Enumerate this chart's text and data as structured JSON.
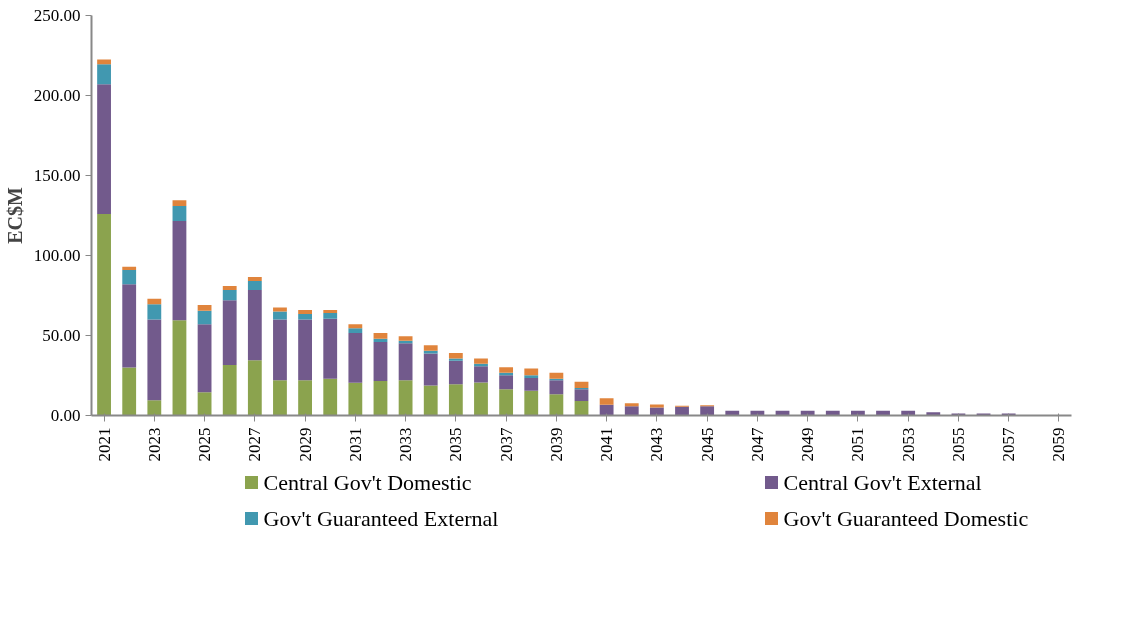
{
  "chart_data": {
    "type": "bar",
    "stacked": true,
    "ylabel": "EC$M",
    "categories": [
      "2021",
      null,
      "2023",
      null,
      "2025",
      null,
      "2027",
      null,
      "2029",
      null,
      "2031",
      null,
      "2033",
      null,
      "2035",
      null,
      "2037",
      null,
      "2039",
      null,
      "2041",
      null,
      "2043",
      null,
      "2045",
      null,
      "2047",
      null,
      "2049",
      null,
      "2051",
      null,
      "2053",
      null,
      "2055",
      null,
      "2057",
      null,
      "2059"
    ],
    "series": [
      {
        "name": "Central Gov't Domestic",
        "color": "#8ba34e",
        "values": [
          126,
          30,
          9.5,
          59.5,
          14.5,
          31.5,
          34.5,
          22,
          22,
          23,
          20.5,
          21.5,
          22,
          18.7,
          19.6,
          20.6,
          16.4,
          15.5,
          13.3,
          9.1,
          0,
          0,
          0,
          0,
          0,
          0,
          0,
          0,
          0,
          0,
          0,
          0,
          0,
          0,
          0,
          0,
          0,
          0,
          0
        ]
      },
      {
        "name": "Central Gov't External",
        "color": "#725a8c",
        "values": [
          81,
          52,
          50.5,
          62,
          42.5,
          40.5,
          44,
          38,
          38,
          37.5,
          31,
          24.5,
          23.2,
          20.1,
          14.6,
          10.2,
          8.8,
          8,
          8.7,
          7.3,
          6.7,
          5.8,
          5,
          5.4,
          5.8,
          3,
          3,
          3,
          3,
          3,
          3,
          3,
          3,
          2.1,
          1.3,
          1.3,
          1.3,
          0,
          0
        ]
      },
      {
        "name": "Gov't Guaranteed External",
        "color": "#4198b0",
        "values": [
          12.5,
          9,
          9.5,
          9.5,
          8.5,
          6.5,
          5.5,
          5,
          3.5,
          3.5,
          3,
          2,
          1.5,
          1.6,
          1.5,
          1.5,
          1.5,
          1.7,
          1,
          0.8,
          0,
          0,
          0,
          0,
          0,
          0,
          0,
          0,
          0,
          0,
          0,
          0,
          0,
          0,
          0,
          0,
          0,
          0,
          0
        ]
      },
      {
        "name": "Gov't Guaranteed Domestic",
        "color": "#e0843c",
        "values": [
          3,
          2,
          3.5,
          3.5,
          3.5,
          2.5,
          2.5,
          2.5,
          2.5,
          2,
          2.5,
          3.5,
          2.8,
          3.5,
          3.3,
          3.4,
          3.4,
          4.1,
          3.7,
          3.9,
          4.1,
          1.9,
          1.9,
          0.7,
          0.6,
          0,
          0,
          0,
          0,
          0,
          0,
          0,
          0,
          0,
          0,
          0,
          0,
          0,
          0
        ]
      }
    ],
    "ylim": [
      0,
      250
    ],
    "yticks": [
      {
        "value": 0,
        "label": "0.00"
      },
      {
        "value": 50,
        "label": "50.00"
      },
      {
        "value": 100,
        "label": "100.00"
      },
      {
        "value": 150,
        "label": "150.00"
      },
      {
        "value": 200,
        "label": "200.00"
      },
      {
        "value": 250,
        "label": "250.00"
      }
    ],
    "grid": false,
    "legend": "bottom"
  }
}
